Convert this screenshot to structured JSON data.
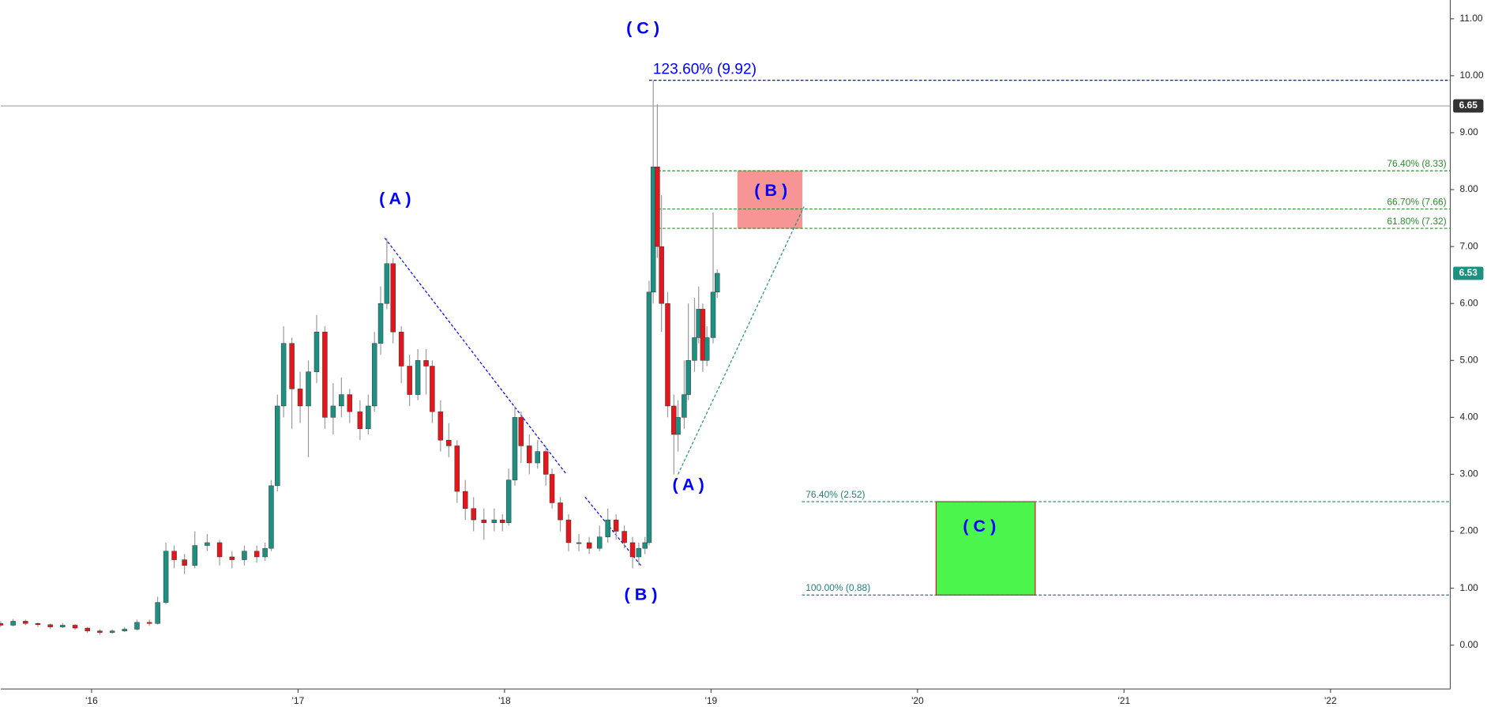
{
  "chart_data": {
    "type": "candlestick",
    "x": [
      2015.56,
      2015.62,
      2015.68,
      2015.74,
      2015.8,
      2015.86,
      2015.92,
      2015.98,
      2016.04,
      2016.1,
      2016.16,
      2016.22,
      2016.28,
      2016.32,
      2016.36,
      2016.4,
      2016.45,
      2016.5,
      2016.56,
      2016.62,
      2016.68,
      2016.74,
      2016.8,
      2016.84,
      2016.87,
      2016.9,
      2016.93,
      2016.97,
      2017.01,
      2017.05,
      2017.09,
      2017.13,
      2017.17,
      2017.21,
      2017.25,
      2017.3,
      2017.34,
      2017.37,
      2017.4,
      2017.43,
      2017.46,
      2017.5,
      2017.54,
      2017.58,
      2017.62,
      2017.65,
      2017.69,
      2017.73,
      2017.77,
      2017.81,
      2017.85,
      2017.9,
      2017.95,
      2017.99,
      2018.02,
      2018.05,
      2018.08,
      2018.12,
      2018.16,
      2018.2,
      2018.23,
      2018.27,
      2018.31,
      2018.36,
      2018.41,
      2018.46,
      2018.5,
      2018.54,
      2018.58,
      2018.62,
      2018.65,
      2018.68,
      2018.7,
      2018.72,
      2018.74,
      2018.76,
      2018.79,
      2018.82,
      2018.84,
      2018.87,
      2018.89,
      2018.92,
      2018.94,
      2018.96,
      2018.98,
      2019.01,
      2019.03
    ],
    "open": [
      0.38,
      0.35,
      0.42,
      0.38,
      0.36,
      0.32,
      0.35,
      0.3,
      0.25,
      0.22,
      0.25,
      0.28,
      0.4,
      0.38,
      0.75,
      1.65,
      1.5,
      1.4,
      1.75,
      1.8,
      1.55,
      1.5,
      1.65,
      1.55,
      1.7,
      2.8,
      4.2,
      5.3,
      4.5,
      4.2,
      4.8,
      5.5,
      4.0,
      4.2,
      4.4,
      4.1,
      3.8,
      4.2,
      5.3,
      6.0,
      6.7,
      5.5,
      4.9,
      4.4,
      5.0,
      4.9,
      4.1,
      3.6,
      3.5,
      2.7,
      2.4,
      2.2,
      2.15,
      2.2,
      2.15,
      2.9,
      4.0,
      3.5,
      3.2,
      3.4,
      3.0,
      2.5,
      2.2,
      1.8,
      1.8,
      1.7,
      1.9,
      2.2,
      2.0,
      1.8,
      1.55,
      1.7,
      1.8,
      6.2,
      8.4,
      7.0,
      6.0,
      4.2,
      3.7,
      4.0,
      4.4,
      5.0,
      5.4,
      5.9,
      5.0,
      5.4,
      6.2
    ],
    "high": [
      0.42,
      0.46,
      0.45,
      0.4,
      0.38,
      0.39,
      0.37,
      0.32,
      0.28,
      0.28,
      0.32,
      0.45,
      0.45,
      0.85,
      1.8,
      1.75,
      1.6,
      2.0,
      1.95,
      1.85,
      1.65,
      1.75,
      1.75,
      1.8,
      2.9,
      4.4,
      5.6,
      5.4,
      4.8,
      5.0,
      5.8,
      5.6,
      4.6,
      4.7,
      4.5,
      4.3,
      4.4,
      5.5,
      6.3,
      7.15,
      6.8,
      5.6,
      5.1,
      5.2,
      5.2,
      5.0,
      4.3,
      3.9,
      3.6,
      2.9,
      2.6,
      2.4,
      2.4,
      2.3,
      3.1,
      4.2,
      4.1,
      3.7,
      3.6,
      3.5,
      3.1,
      2.6,
      2.3,
      1.95,
      1.9,
      2.1,
      2.4,
      2.3,
      2.1,
      1.9,
      1.8,
      1.9,
      6.4,
      9.92,
      9.5,
      7.9,
      6.2,
      4.4,
      4.3,
      5.0,
      6.0,
      6.1,
      6.3,
      6.0,
      5.6,
      7.6,
      6.6
    ],
    "low": [
      0.32,
      0.33,
      0.35,
      0.32,
      0.28,
      0.3,
      0.27,
      0.22,
      0.18,
      0.2,
      0.23,
      0.26,
      0.34,
      0.36,
      0.72,
      1.35,
      1.25,
      1.35,
      1.65,
      1.4,
      1.35,
      1.4,
      1.45,
      1.48,
      1.65,
      2.7,
      4.0,
      3.8,
      3.9,
      3.3,
      4.6,
      3.8,
      3.7,
      4.0,
      3.9,
      3.6,
      3.7,
      4.1,
      5.1,
      5.9,
      5.3,
      4.6,
      4.2,
      4.3,
      4.4,
      3.9,
      3.4,
      3.3,
      2.5,
      2.2,
      2.0,
      1.85,
      2.0,
      2.0,
      2.1,
      2.8,
      3.2,
      3.0,
      3.1,
      2.8,
      2.4,
      2.0,
      1.65,
      1.65,
      1.6,
      1.65,
      1.8,
      1.85,
      1.7,
      1.35,
      1.4,
      1.6,
      1.75,
      6.0,
      6.8,
      5.5,
      4.0,
      3.0,
      3.4,
      3.8,
      4.3,
      4.8,
      5.3,
      4.8,
      4.9,
      5.3,
      6.1
    ],
    "close": [
      0.35,
      0.42,
      0.38,
      0.36,
      0.32,
      0.35,
      0.3,
      0.25,
      0.22,
      0.25,
      0.28,
      0.4,
      0.38,
      0.75,
      1.65,
      1.5,
      1.4,
      1.75,
      1.8,
      1.55,
      1.5,
      1.65,
      1.55,
      1.7,
      2.8,
      4.2,
      5.3,
      4.5,
      4.2,
      4.8,
      5.5,
      4.0,
      4.2,
      4.4,
      4.1,
      3.8,
      4.2,
      5.3,
      6.0,
      6.7,
      5.5,
      4.9,
      4.4,
      5.0,
      4.9,
      4.1,
      3.6,
      3.5,
      2.7,
      2.4,
      2.2,
      2.15,
      2.2,
      2.15,
      2.9,
      4.0,
      3.5,
      3.2,
      3.4,
      3.0,
      2.5,
      2.2,
      1.8,
      1.8,
      1.7,
      1.9,
      2.2,
      2.0,
      1.8,
      1.55,
      1.7,
      1.8,
      6.2,
      8.4,
      7.0,
      6.0,
      4.2,
      3.7,
      4.0,
      4.4,
      5.0,
      5.4,
      5.9,
      5.0,
      5.4,
      6.2,
      6.53
    ],
    "up_color": "#1f8f82",
    "down_color": "#e3161c",
    "wick_color": "#9a9a9a",
    "xlim": [
      2015.56,
      2022.58
    ],
    "ylim": [
      -0.77,
      11.33
    ],
    "xticks": [
      {
        "value": 2016,
        "label": "'16"
      },
      {
        "value": 2017,
        "label": "'17"
      },
      {
        "value": 2018,
        "label": "'18"
      },
      {
        "value": 2019,
        "label": "'19"
      },
      {
        "value": 2020,
        "label": "'20"
      },
      {
        "value": 2021,
        "label": "'21"
      },
      {
        "value": 2022,
        "label": "'22"
      }
    ],
    "yticks": [
      {
        "value": 0,
        "label": "0.00"
      },
      {
        "value": 1,
        "label": "1.00"
      },
      {
        "value": 2,
        "label": "2.00"
      },
      {
        "value": 3,
        "label": "3.00"
      },
      {
        "value": 4,
        "label": "4.00"
      },
      {
        "value": 5,
        "label": "5.00"
      },
      {
        "value": 6,
        "label": "6.00"
      },
      {
        "value": 7,
        "label": "7.00"
      },
      {
        "value": 8,
        "label": "8.00"
      },
      {
        "value": 9,
        "label": "9.00"
      },
      {
        "value": 10,
        "label": "10.00"
      },
      {
        "value": 11,
        "label": "11.00"
      }
    ],
    "last_price": 6.53,
    "last_price_color": "#1f8f82",
    "reference_line": 9.47,
    "reference_tag": "6.65",
    "fib_levels": [
      {
        "value": 9.92,
        "label": "123.60% (9.92)",
        "color": "#0000ff",
        "x_from": 2018.7,
        "label_align": "left",
        "big": true
      },
      {
        "value": 8.33,
        "label": "76.40% (8.33)",
        "color": "#2e8b2e",
        "x_from": 2018.72,
        "label_align": "right"
      },
      {
        "value": 7.66,
        "label": "66.70% (7.66)",
        "color": "#2e8b2e",
        "x_from": 2018.72,
        "label_align": "right"
      },
      {
        "value": 7.32,
        "label": "61.80% (7.32)",
        "color": "#2e8b2e",
        "x_from": 2018.72,
        "label_align": "right"
      },
      {
        "value": 2.52,
        "label": "76.40% (2.52)",
        "color": "#1f7f78",
        "x_from": 2019.44,
        "label_align": "left"
      },
      {
        "value": 0.88,
        "label": "100.00% (0.88)",
        "color": "#1f7f78",
        "x_from": 2019.44,
        "label_align": "left"
      }
    ],
    "zones": [
      {
        "x": [
          2019.13,
          2019.44
        ],
        "y": [
          7.32,
          8.33
        ],
        "fill": "#f79595",
        "stroke": "#f79595"
      },
      {
        "x": [
          2020.09,
          2020.57
        ],
        "y": [
          0.88,
          2.52
        ],
        "fill": "#4cf54c",
        "stroke": "#e3161c"
      }
    ],
    "trend_lines": [
      {
        "x": [
          2017.42,
          2018.3
        ],
        "y": [
          7.15,
          3.0
        ],
        "color": "#0000ff"
      },
      {
        "x": [
          2018.39,
          2018.66
        ],
        "y": [
          2.6,
          1.4
        ],
        "color": "#0000ff"
      },
      {
        "x": [
          2018.84,
          2019.45
        ],
        "y": [
          3.0,
          7.7
        ],
        "color": "#1f8f82"
      }
    ],
    "waves": [
      {
        "label": "( A )",
        "x": 2017.47,
        "y": 7.82,
        "color": "#0000ff"
      },
      {
        "label": "( B )",
        "x": 2018.66,
        "y": 0.87,
        "color": "#0000ff"
      },
      {
        "label": "( C )",
        "x": 2018.67,
        "y": 10.82,
        "color": "#0000ff"
      },
      {
        "label": "( A )",
        "x": 2018.89,
        "y": 2.8,
        "color": "#0000ff"
      },
      {
        "label": "( B )",
        "x": 2019.29,
        "y": 7.97,
        "color": "#0000ff"
      },
      {
        "label": "( C )",
        "x": 2020.3,
        "y": 2.07,
        "color": "#0000ff"
      }
    ]
  }
}
